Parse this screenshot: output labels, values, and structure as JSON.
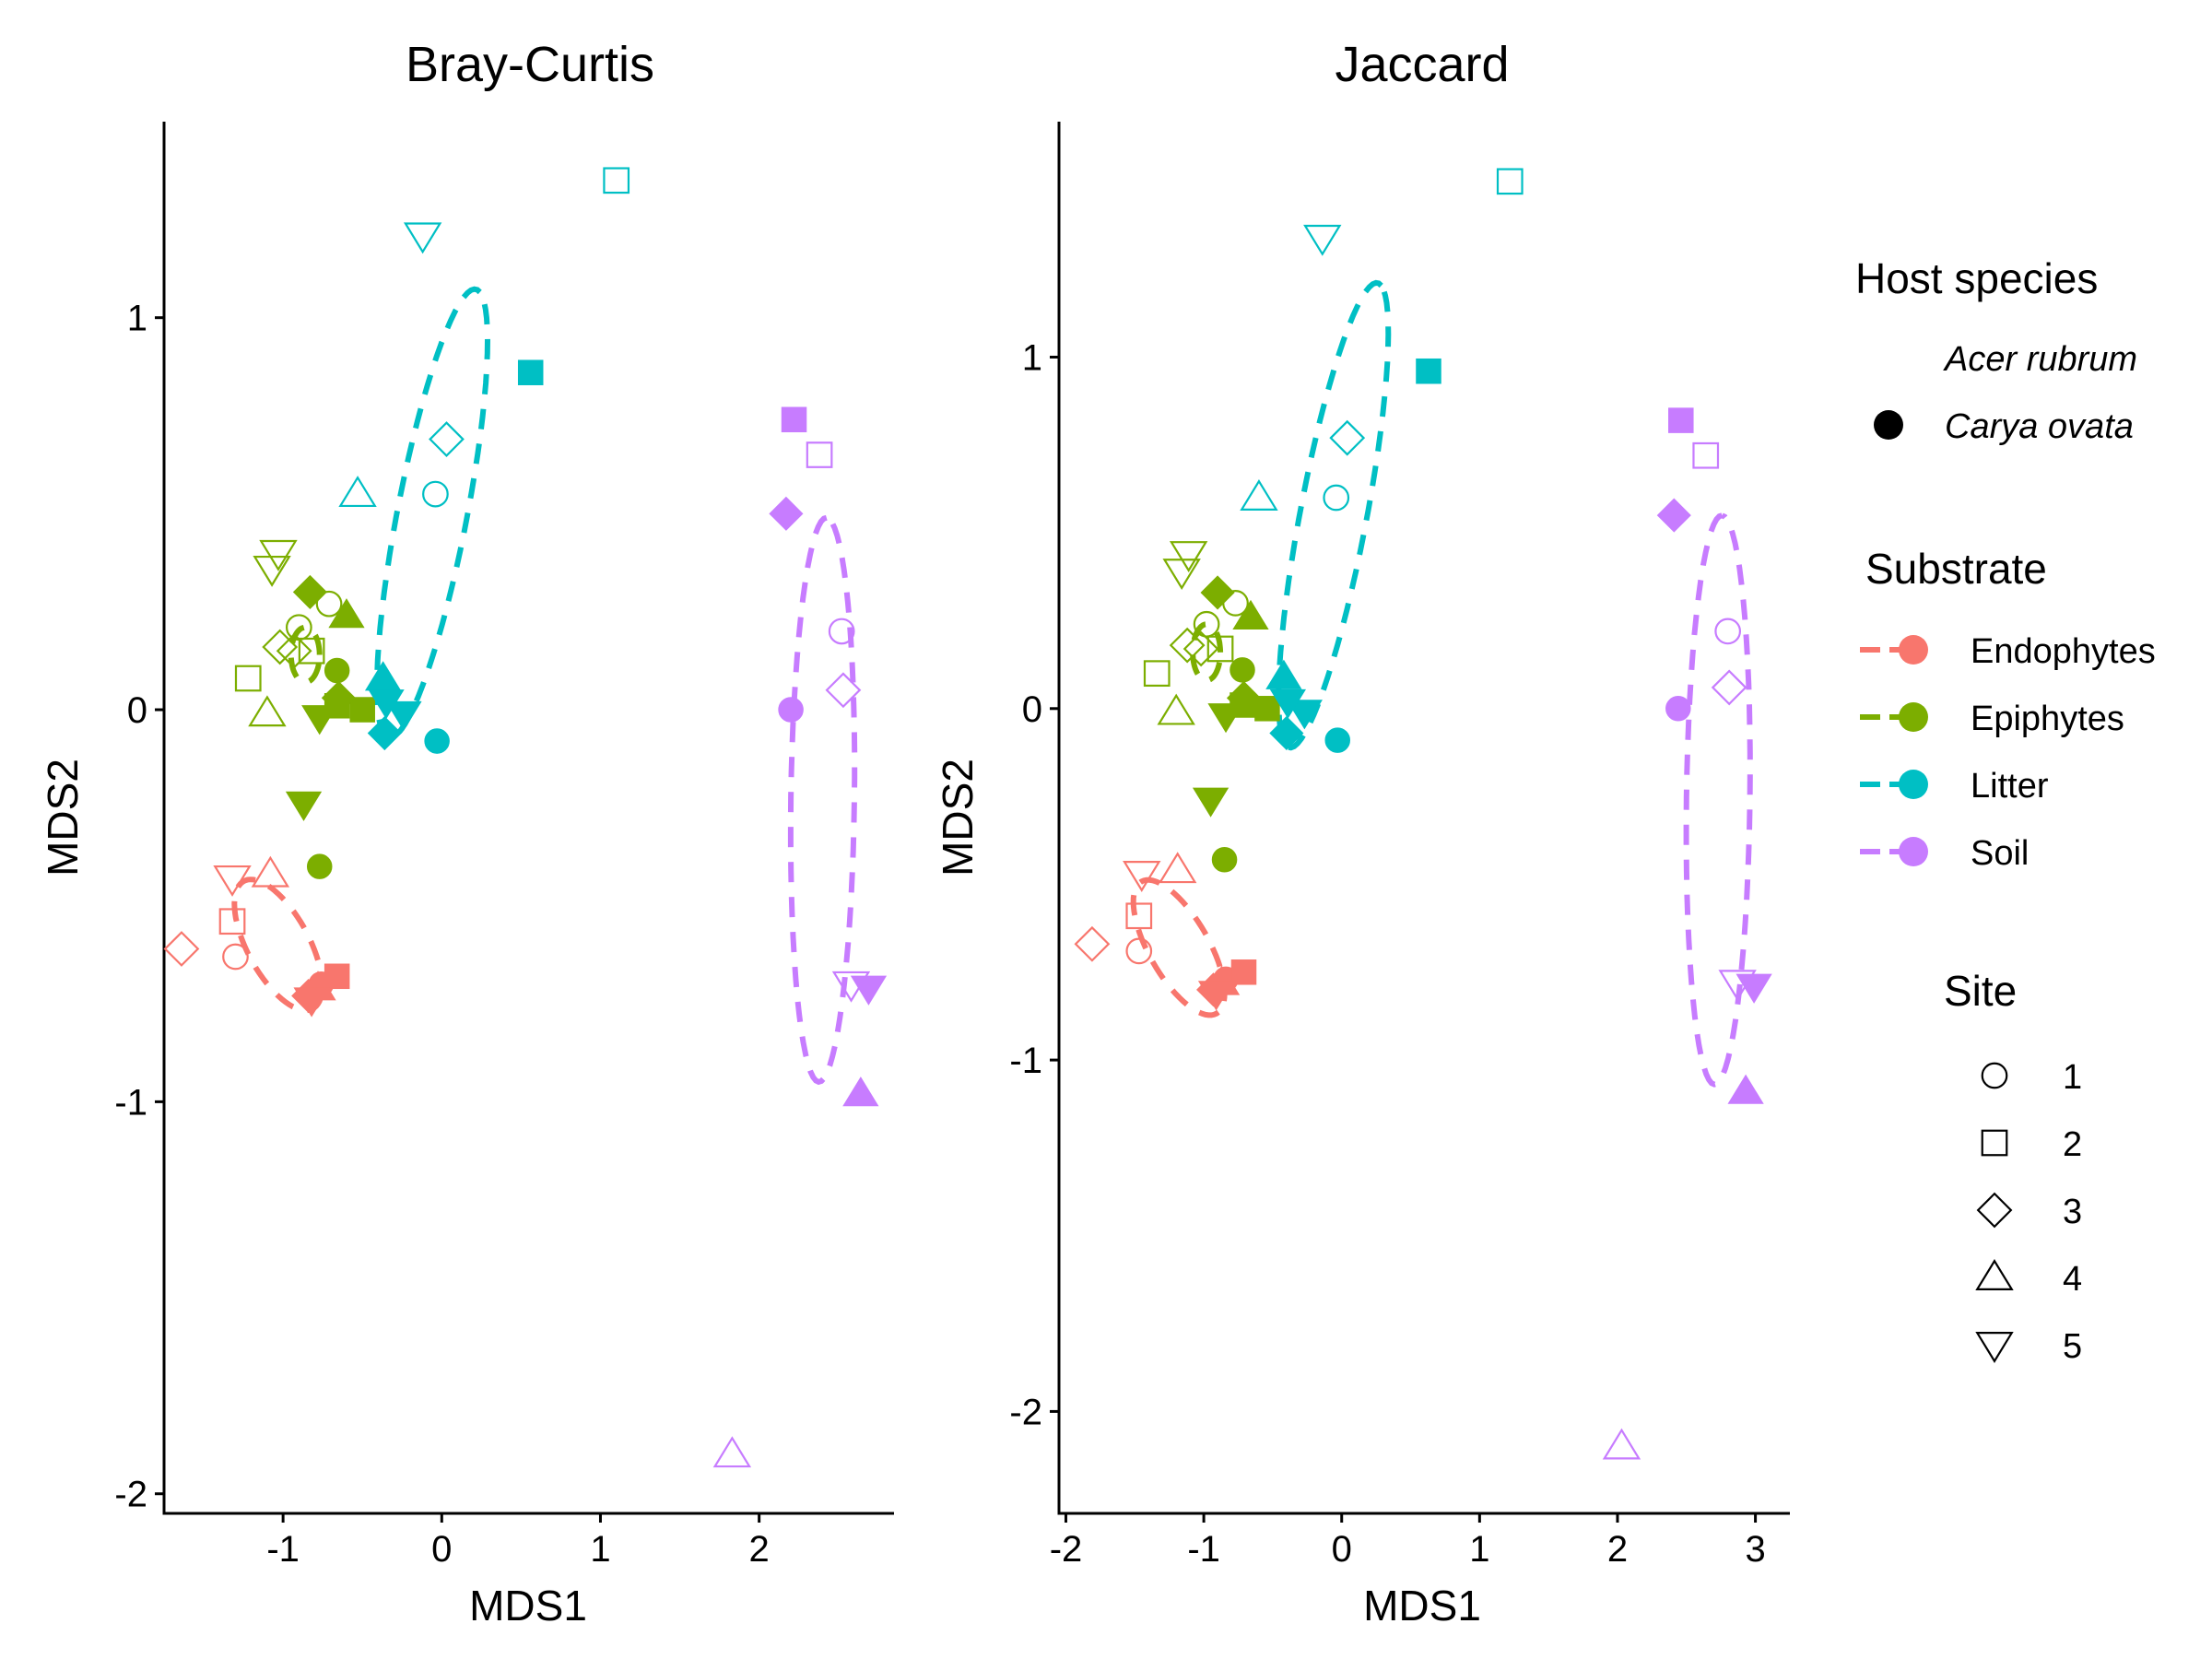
{
  "chart_data": [
    {
      "type": "scatter",
      "title": "Bray-Curtis",
      "xlabel": "MDS1",
      "ylabel": "MDS2",
      "xlim": [
        -1.75,
        2.85
      ],
      "ylim": [
        -2.05,
        1.5
      ],
      "xticks": [
        -1,
        0,
        1,
        2
      ],
      "xtick_labels": [
        "-1",
        "0",
        "1",
        "2"
      ],
      "yticks": [
        -2,
        -1,
        0,
        1
      ],
      "ytick_labels": [
        "-2",
        "-1",
        "0",
        "1"
      ],
      "grid": false,
      "ellipses": [
        {
          "substrate": "Endophytes",
          "cx": -1.03,
          "cy": -0.6,
          "rx": 0.3,
          "ry": 0.12,
          "angle": -25
        },
        {
          "substrate": "Epiphytes",
          "cx": -0.86,
          "cy": 0.14,
          "rx": 0.09,
          "ry": 0.07,
          "angle": 0
        },
        {
          "substrate": "Litter",
          "cx": -0.06,
          "cy": 0.5,
          "rx": 0.64,
          "ry": 0.2,
          "angle": 62
        },
        {
          "substrate": "Soil",
          "cx": 2.4,
          "cy": -0.23,
          "rx": 0.72,
          "ry": 0.2,
          "angle": 88
        }
      ],
      "points": [
        {
          "substrate": "Endophytes",
          "host": "Acer rubrum",
          "site": "1",
          "x": -1.3,
          "y": -0.63
        },
        {
          "substrate": "Endophytes",
          "host": "Acer rubrum",
          "site": "2",
          "x": -1.32,
          "y": -0.54
        },
        {
          "substrate": "Endophytes",
          "host": "Acer rubrum",
          "site": "3",
          "x": -1.64,
          "y": -0.61
        },
        {
          "substrate": "Endophytes",
          "host": "Acer rubrum",
          "site": "4",
          "x": -1.08,
          "y": -0.42
        },
        {
          "substrate": "Endophytes",
          "host": "Acer rubrum",
          "site": "5",
          "x": -1.32,
          "y": -0.43
        },
        {
          "substrate": "Endophytes",
          "host": "Carya ovata",
          "site": "1",
          "x": -0.76,
          "y": -0.7
        },
        {
          "substrate": "Endophytes",
          "host": "Carya ovata",
          "site": "2",
          "x": -0.66,
          "y": -0.68
        },
        {
          "substrate": "Endophytes",
          "host": "Carya ovata",
          "site": "3",
          "x": -0.84,
          "y": -0.73
        },
        {
          "substrate": "Endophytes",
          "host": "Carya ovata",
          "site": "4",
          "x": -0.78,
          "y": -0.71
        },
        {
          "substrate": "Endophytes",
          "host": "Carya ovata",
          "site": "5",
          "x": -0.82,
          "y": -0.74
        },
        {
          "substrate": "Epiphytes",
          "host": "Acer rubrum",
          "site": "1",
          "x": -0.9,
          "y": 0.21
        },
        {
          "substrate": "Epiphytes",
          "host": "Acer rubrum",
          "site": "1",
          "x": -0.71,
          "y": 0.27
        },
        {
          "substrate": "Epiphytes",
          "host": "Acer rubrum",
          "site": "2",
          "x": -1.22,
          "y": 0.08
        },
        {
          "substrate": "Epiphytes",
          "host": "Acer rubrum",
          "site": "2",
          "x": -0.82,
          "y": 0.15
        },
        {
          "substrate": "Epiphytes",
          "host": "Acer rubrum",
          "site": "3",
          "x": -1.02,
          "y": 0.16
        },
        {
          "substrate": "Epiphytes",
          "host": "Acer rubrum",
          "site": "3",
          "x": -0.93,
          "y": 0.15
        },
        {
          "substrate": "Epiphytes",
          "host": "Acer rubrum",
          "site": "4",
          "x": -1.1,
          "y": -0.01
        },
        {
          "substrate": "Epiphytes",
          "host": "Acer rubrum",
          "site": "5",
          "x": -1.03,
          "y": 0.4
        },
        {
          "substrate": "Epiphytes",
          "host": "Acer rubrum",
          "site": "5",
          "x": -1.07,
          "y": 0.36
        },
        {
          "substrate": "Epiphytes",
          "host": "Carya ovata",
          "site": "1",
          "x": -0.66,
          "y": 0.1
        },
        {
          "substrate": "Epiphytes",
          "host": "Carya ovata",
          "site": "1",
          "x": -0.77,
          "y": -0.4
        },
        {
          "substrate": "Epiphytes",
          "host": "Carya ovata",
          "site": "2",
          "x": -0.5,
          "y": 0.0
        },
        {
          "substrate": "Epiphytes",
          "host": "Carya ovata",
          "site": "2",
          "x": -0.66,
          "y": 0.01
        },
        {
          "substrate": "Epiphytes",
          "host": "Carya ovata",
          "site": "3",
          "x": -0.83,
          "y": 0.3
        },
        {
          "substrate": "Epiphytes",
          "host": "Carya ovata",
          "site": "3",
          "x": -0.65,
          "y": 0.03
        },
        {
          "substrate": "Epiphytes",
          "host": "Carya ovata",
          "site": "4",
          "x": -0.6,
          "y": 0.24
        },
        {
          "substrate": "Epiphytes",
          "host": "Carya ovata",
          "site": "5",
          "x": -0.77,
          "y": -0.02
        },
        {
          "substrate": "Epiphytes",
          "host": "Carya ovata",
          "site": "5",
          "x": -0.87,
          "y": -0.24
        },
        {
          "substrate": "Litter",
          "host": "Acer rubrum",
          "site": "1",
          "x": -0.04,
          "y": 0.55
        },
        {
          "substrate": "Litter",
          "host": "Acer rubrum",
          "site": "2",
          "x": 1.1,
          "y": 1.35
        },
        {
          "substrate": "Litter",
          "host": "Acer rubrum",
          "site": "3",
          "x": 0.03,
          "y": 0.69
        },
        {
          "substrate": "Litter",
          "host": "Acer rubrum",
          "site": "4",
          "x": -0.53,
          "y": 0.55
        },
        {
          "substrate": "Litter",
          "host": "Acer rubrum",
          "site": "5",
          "x": -0.12,
          "y": 1.21
        },
        {
          "substrate": "Litter",
          "host": "Carya ovata",
          "site": "1",
          "x": -0.03,
          "y": -0.08
        },
        {
          "substrate": "Litter",
          "host": "Carya ovata",
          "site": "2",
          "x": 0.56,
          "y": 0.86
        },
        {
          "substrate": "Litter",
          "host": "Carya ovata",
          "site": "3",
          "x": -0.36,
          "y": -0.06
        },
        {
          "substrate": "Litter",
          "host": "Carya ovata",
          "site": "4",
          "x": -0.37,
          "y": 0.08
        },
        {
          "substrate": "Litter",
          "host": "Carya ovata",
          "site": "5",
          "x": -0.24,
          "y": -0.01
        },
        {
          "substrate": "Litter",
          "host": "Carya ovata",
          "site": "5",
          "x": -0.35,
          "y": 0.02
        },
        {
          "substrate": "Soil",
          "host": "Acer rubrum",
          "site": "1",
          "x": 2.52,
          "y": 0.2
        },
        {
          "substrate": "Soil",
          "host": "Acer rubrum",
          "site": "2",
          "x": 2.38,
          "y": 0.65
        },
        {
          "substrate": "Soil",
          "host": "Acer rubrum",
          "site": "3",
          "x": 2.53,
          "y": 0.05
        },
        {
          "substrate": "Soil",
          "host": "Acer rubrum",
          "site": "4",
          "x": 1.83,
          "y": -1.9
        },
        {
          "substrate": "Soil",
          "host": "Acer rubrum",
          "site": "5",
          "x": 2.58,
          "y": -0.7
        },
        {
          "substrate": "Soil",
          "host": "Carya ovata",
          "site": "1",
          "x": 2.2,
          "y": 0.0
        },
        {
          "substrate": "Soil",
          "host": "Carya ovata",
          "site": "2",
          "x": 2.22,
          "y": 0.74
        },
        {
          "substrate": "Soil",
          "host": "Carya ovata",
          "site": "3",
          "x": 2.17,
          "y": 0.5
        },
        {
          "substrate": "Soil",
          "host": "Carya ovata",
          "site": "4",
          "x": 2.64,
          "y": -0.98
        },
        {
          "substrate": "Soil",
          "host": "Carya ovata",
          "site": "5",
          "x": 2.69,
          "y": -0.71
        }
      ]
    },
    {
      "type": "scatter",
      "title": "Jaccard",
      "xlabel": "MDS1",
      "ylabel": "MDS2",
      "xlim": [
        -2.05,
        3.25
      ],
      "ylim": [
        -2.29,
        1.67
      ],
      "xticks": [
        -2,
        -1,
        0,
        1,
        2,
        3
      ],
      "xtick_labels": [
        "-2",
        "-1",
        "0",
        "1",
        "2",
        "3"
      ],
      "yticks": [
        -2,
        -1,
        0,
        1
      ],
      "ytick_labels": [
        "-2",
        "-1",
        "0",
        "1"
      ],
      "grid": false,
      "ellipses": [
        {
          "substrate": "Endophytes",
          "cx": -1.18,
          "cy": -0.68,
          "rx": 0.36,
          "ry": 0.13,
          "angle": -25
        },
        {
          "substrate": "Epiphytes",
          "cx": -0.98,
          "cy": 0.16,
          "rx": 0.1,
          "ry": 0.08,
          "angle": 0
        },
        {
          "substrate": "Litter",
          "cx": -0.06,
          "cy": 0.55,
          "rx": 0.74,
          "ry": 0.22,
          "angle": 62
        },
        {
          "substrate": "Soil",
          "cx": 2.73,
          "cy": -0.26,
          "rx": 0.81,
          "ry": 0.23,
          "angle": 88
        }
      ],
      "points": [
        {
          "substrate": "Endophytes",
          "host": "Acer rubrum",
          "site": "1",
          "x": -1.47,
          "y": -0.69
        },
        {
          "substrate": "Endophytes",
          "host": "Acer rubrum",
          "site": "2",
          "x": -1.47,
          "y": -0.59
        },
        {
          "substrate": "Endophytes",
          "host": "Acer rubrum",
          "site": "3",
          "x": -1.81,
          "y": -0.67
        },
        {
          "substrate": "Endophytes",
          "host": "Acer rubrum",
          "site": "4",
          "x": -1.19,
          "y": -0.46
        },
        {
          "substrate": "Endophytes",
          "host": "Acer rubrum",
          "site": "5",
          "x": -1.45,
          "y": -0.47
        },
        {
          "substrate": "Endophytes",
          "host": "Carya ovata",
          "site": "1",
          "x": -0.84,
          "y": -0.77
        },
        {
          "substrate": "Endophytes",
          "host": "Carya ovata",
          "site": "2",
          "x": -0.71,
          "y": -0.75
        },
        {
          "substrate": "Endophytes",
          "host": "Carya ovata",
          "site": "3",
          "x": -0.93,
          "y": -0.8
        },
        {
          "substrate": "Endophytes",
          "host": "Carya ovata",
          "site": "4",
          "x": -0.87,
          "y": -0.78
        },
        {
          "substrate": "Endophytes",
          "host": "Carya ovata",
          "site": "5",
          "x": -0.91,
          "y": -0.81
        },
        {
          "substrate": "Epiphytes",
          "host": "Acer rubrum",
          "site": "1",
          "x": -0.98,
          "y": 0.24
        },
        {
          "substrate": "Epiphytes",
          "host": "Acer rubrum",
          "site": "1",
          "x": -0.77,
          "y": 0.3
        },
        {
          "substrate": "Epiphytes",
          "host": "Acer rubrum",
          "site": "2",
          "x": -1.34,
          "y": 0.1
        },
        {
          "substrate": "Epiphytes",
          "host": "Acer rubrum",
          "site": "2",
          "x": -0.88,
          "y": 0.17
        },
        {
          "substrate": "Epiphytes",
          "host": "Acer rubrum",
          "site": "3",
          "x": -1.12,
          "y": 0.18
        },
        {
          "substrate": "Epiphytes",
          "host": "Acer rubrum",
          "site": "3",
          "x": -1.02,
          "y": 0.17
        },
        {
          "substrate": "Epiphytes",
          "host": "Acer rubrum",
          "site": "4",
          "x": -1.2,
          "y": -0.01
        },
        {
          "substrate": "Epiphytes",
          "host": "Acer rubrum",
          "site": "5",
          "x": -1.11,
          "y": 0.44
        },
        {
          "substrate": "Epiphytes",
          "host": "Acer rubrum",
          "site": "5",
          "x": -1.16,
          "y": 0.39
        },
        {
          "substrate": "Epiphytes",
          "host": "Carya ovata",
          "site": "1",
          "x": -0.72,
          "y": 0.11
        },
        {
          "substrate": "Epiphytes",
          "host": "Carya ovata",
          "site": "1",
          "x": -0.85,
          "y": -0.43
        },
        {
          "substrate": "Epiphytes",
          "host": "Carya ovata",
          "site": "2",
          "x": -0.54,
          "y": 0.0
        },
        {
          "substrate": "Epiphytes",
          "host": "Carya ovata",
          "site": "2",
          "x": -0.72,
          "y": 0.01
        },
        {
          "substrate": "Epiphytes",
          "host": "Carya ovata",
          "site": "3",
          "x": -0.9,
          "y": 0.33
        },
        {
          "substrate": "Epiphytes",
          "host": "Carya ovata",
          "site": "3",
          "x": -0.71,
          "y": 0.03
        },
        {
          "substrate": "Epiphytes",
          "host": "Carya ovata",
          "site": "4",
          "x": -0.66,
          "y": 0.26
        },
        {
          "substrate": "Epiphytes",
          "host": "Carya ovata",
          "site": "5",
          "x": -0.84,
          "y": -0.02
        },
        {
          "substrate": "Epiphytes",
          "host": "Carya ovata",
          "site": "5",
          "x": -0.95,
          "y": -0.26
        },
        {
          "substrate": "Litter",
          "host": "Acer rubrum",
          "site": "1",
          "x": -0.04,
          "y": 0.6
        },
        {
          "substrate": "Litter",
          "host": "Acer rubrum",
          "site": "2",
          "x": 1.22,
          "y": 1.5
        },
        {
          "substrate": "Litter",
          "host": "Acer rubrum",
          "site": "3",
          "x": 0.04,
          "y": 0.77
        },
        {
          "substrate": "Litter",
          "host": "Acer rubrum",
          "site": "4",
          "x": -0.6,
          "y": 0.6
        },
        {
          "substrate": "Litter",
          "host": "Acer rubrum",
          "site": "5",
          "x": -0.14,
          "y": 1.34
        },
        {
          "substrate": "Litter",
          "host": "Carya ovata",
          "site": "1",
          "x": -0.03,
          "y": -0.09
        },
        {
          "substrate": "Litter",
          "host": "Carya ovata",
          "site": "2",
          "x": 0.63,
          "y": 0.96
        },
        {
          "substrate": "Litter",
          "host": "Carya ovata",
          "site": "3",
          "x": -0.4,
          "y": -0.07
        },
        {
          "substrate": "Litter",
          "host": "Carya ovata",
          "site": "4",
          "x": -0.42,
          "y": 0.09
        },
        {
          "substrate": "Litter",
          "host": "Carya ovata",
          "site": "5",
          "x": -0.27,
          "y": -0.01
        },
        {
          "substrate": "Litter",
          "host": "Carya ovata",
          "site": "5",
          "x": -0.39,
          "y": 0.02
        },
        {
          "substrate": "Soil",
          "host": "Acer rubrum",
          "site": "1",
          "x": 2.8,
          "y": 0.22
        },
        {
          "substrate": "Soil",
          "host": "Acer rubrum",
          "site": "2",
          "x": 2.64,
          "y": 0.72
        },
        {
          "substrate": "Soil",
          "host": "Acer rubrum",
          "site": "3",
          "x": 2.81,
          "y": 0.06
        },
        {
          "substrate": "Soil",
          "host": "Acer rubrum",
          "site": "4",
          "x": 2.03,
          "y": -2.1
        },
        {
          "substrate": "Soil",
          "host": "Acer rubrum",
          "site": "5",
          "x": 2.87,
          "y": -0.78
        },
        {
          "substrate": "Soil",
          "host": "Carya ovata",
          "site": "1",
          "x": 2.44,
          "y": 0.0
        },
        {
          "substrate": "Soil",
          "host": "Carya ovata",
          "site": "2",
          "x": 2.46,
          "y": 0.82
        },
        {
          "substrate": "Soil",
          "host": "Carya ovata",
          "site": "3",
          "x": 2.41,
          "y": 0.55
        },
        {
          "substrate": "Soil",
          "host": "Carya ovata",
          "site": "4",
          "x": 2.93,
          "y": -1.09
        },
        {
          "substrate": "Soil",
          "host": "Carya ovata",
          "site": "5",
          "x": 2.99,
          "y": -0.79
        }
      ]
    }
  ],
  "legend": {
    "host": {
      "title": "Host species",
      "items": [
        {
          "label": "Acer rubrum",
          "symbol": "none"
        },
        {
          "label": "Carya ovata",
          "symbol": "filled-circle"
        }
      ]
    },
    "substrate": {
      "title": "Substrate",
      "items": [
        {
          "label": "Endophytes",
          "color": "#F8766D"
        },
        {
          "label": "Epiphytes",
          "color": "#7CAE00"
        },
        {
          "label": "Litter",
          "color": "#00BFC4"
        },
        {
          "label": "Soil",
          "color": "#C77CFF"
        }
      ]
    },
    "site": {
      "title": "Site",
      "items": [
        {
          "label": "1",
          "shape": "circle"
        },
        {
          "label": "2",
          "shape": "square"
        },
        {
          "label": "3",
          "shape": "diamond"
        },
        {
          "label": "4",
          "shape": "triangle-up"
        },
        {
          "label": "5",
          "shape": "triangle-down"
        }
      ]
    }
  }
}
